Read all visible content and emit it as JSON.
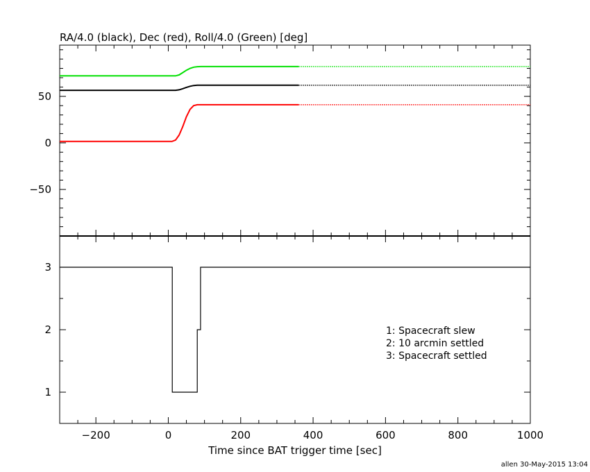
{
  "credit": "allen 30-May-2015 13:04",
  "chart_data": [
    {
      "type": "line",
      "title": "RA/4.0 (black), Dec (red), Roll/4.0 (Green) [deg]",
      "xlabel": "",
      "ylabel": "",
      "xlim": [
        -300,
        1000
      ],
      "ylim": [
        -100,
        105
      ],
      "yticks": [
        -50,
        0,
        50
      ],
      "ytick_labels": [
        "−50",
        "0",
        "50"
      ],
      "grid": false,
      "series": [
        {
          "color": "#000000",
          "x": [
            -300,
            20,
            30,
            40,
            50,
            60,
            70,
            80,
            90,
            360,
            1000
          ],
          "y": [
            56.5,
            56.5,
            57.0,
            58.2,
            59.6,
            60.8,
            61.6,
            62.0,
            62.0,
            62.0,
            62.0
          ],
          "dotted_from": 360
        },
        {
          "color": "#ff0000",
          "x": [
            -300,
            10,
            20,
            30,
            40,
            50,
            60,
            70,
            80,
            90,
            360,
            1000
          ],
          "y": [
            1.5,
            1.5,
            3.0,
            8.5,
            17.5,
            28.0,
            36.0,
            40.0,
            41.0,
            41.0,
            41.0,
            41.0
          ],
          "dotted_from": 360
        },
        {
          "color": "#00e000",
          "x": [
            -300,
            20,
            30,
            40,
            50,
            60,
            70,
            80,
            90,
            360,
            1000
          ],
          "y": [
            72.0,
            72.0,
            73.0,
            75.5,
            78.0,
            80.0,
            81.3,
            81.8,
            82.0,
            82.0,
            82.0
          ],
          "dotted_from": 360
        }
      ]
    },
    {
      "type": "line",
      "title": "",
      "xlabel": "Time since BAT trigger time [sec]",
      "ylabel": "",
      "xlim": [
        -300,
        1000
      ],
      "ylim": [
        0.5,
        3.5
      ],
      "yticks": [
        1,
        2,
        3
      ],
      "ytick_labels": [
        "1",
        "2",
        "3"
      ],
      "xticks": [
        -200,
        0,
        200,
        400,
        600,
        800,
        1000
      ],
      "xtick_labels": [
        "−200",
        "0",
        "200",
        "400",
        "600",
        "800",
        "1000"
      ],
      "step": true,
      "series": [
        {
          "color": "#000000",
          "x": [
            -300,
            11,
            11,
            80,
            80,
            89,
            89,
            1000
          ],
          "y": [
            3,
            3,
            1,
            1,
            2,
            2,
            3,
            3
          ]
        }
      ],
      "annotations": [
        "1: Spacecraft slew",
        "2: 10 arcmin settled",
        "3: Spacecraft settled"
      ]
    }
  ]
}
